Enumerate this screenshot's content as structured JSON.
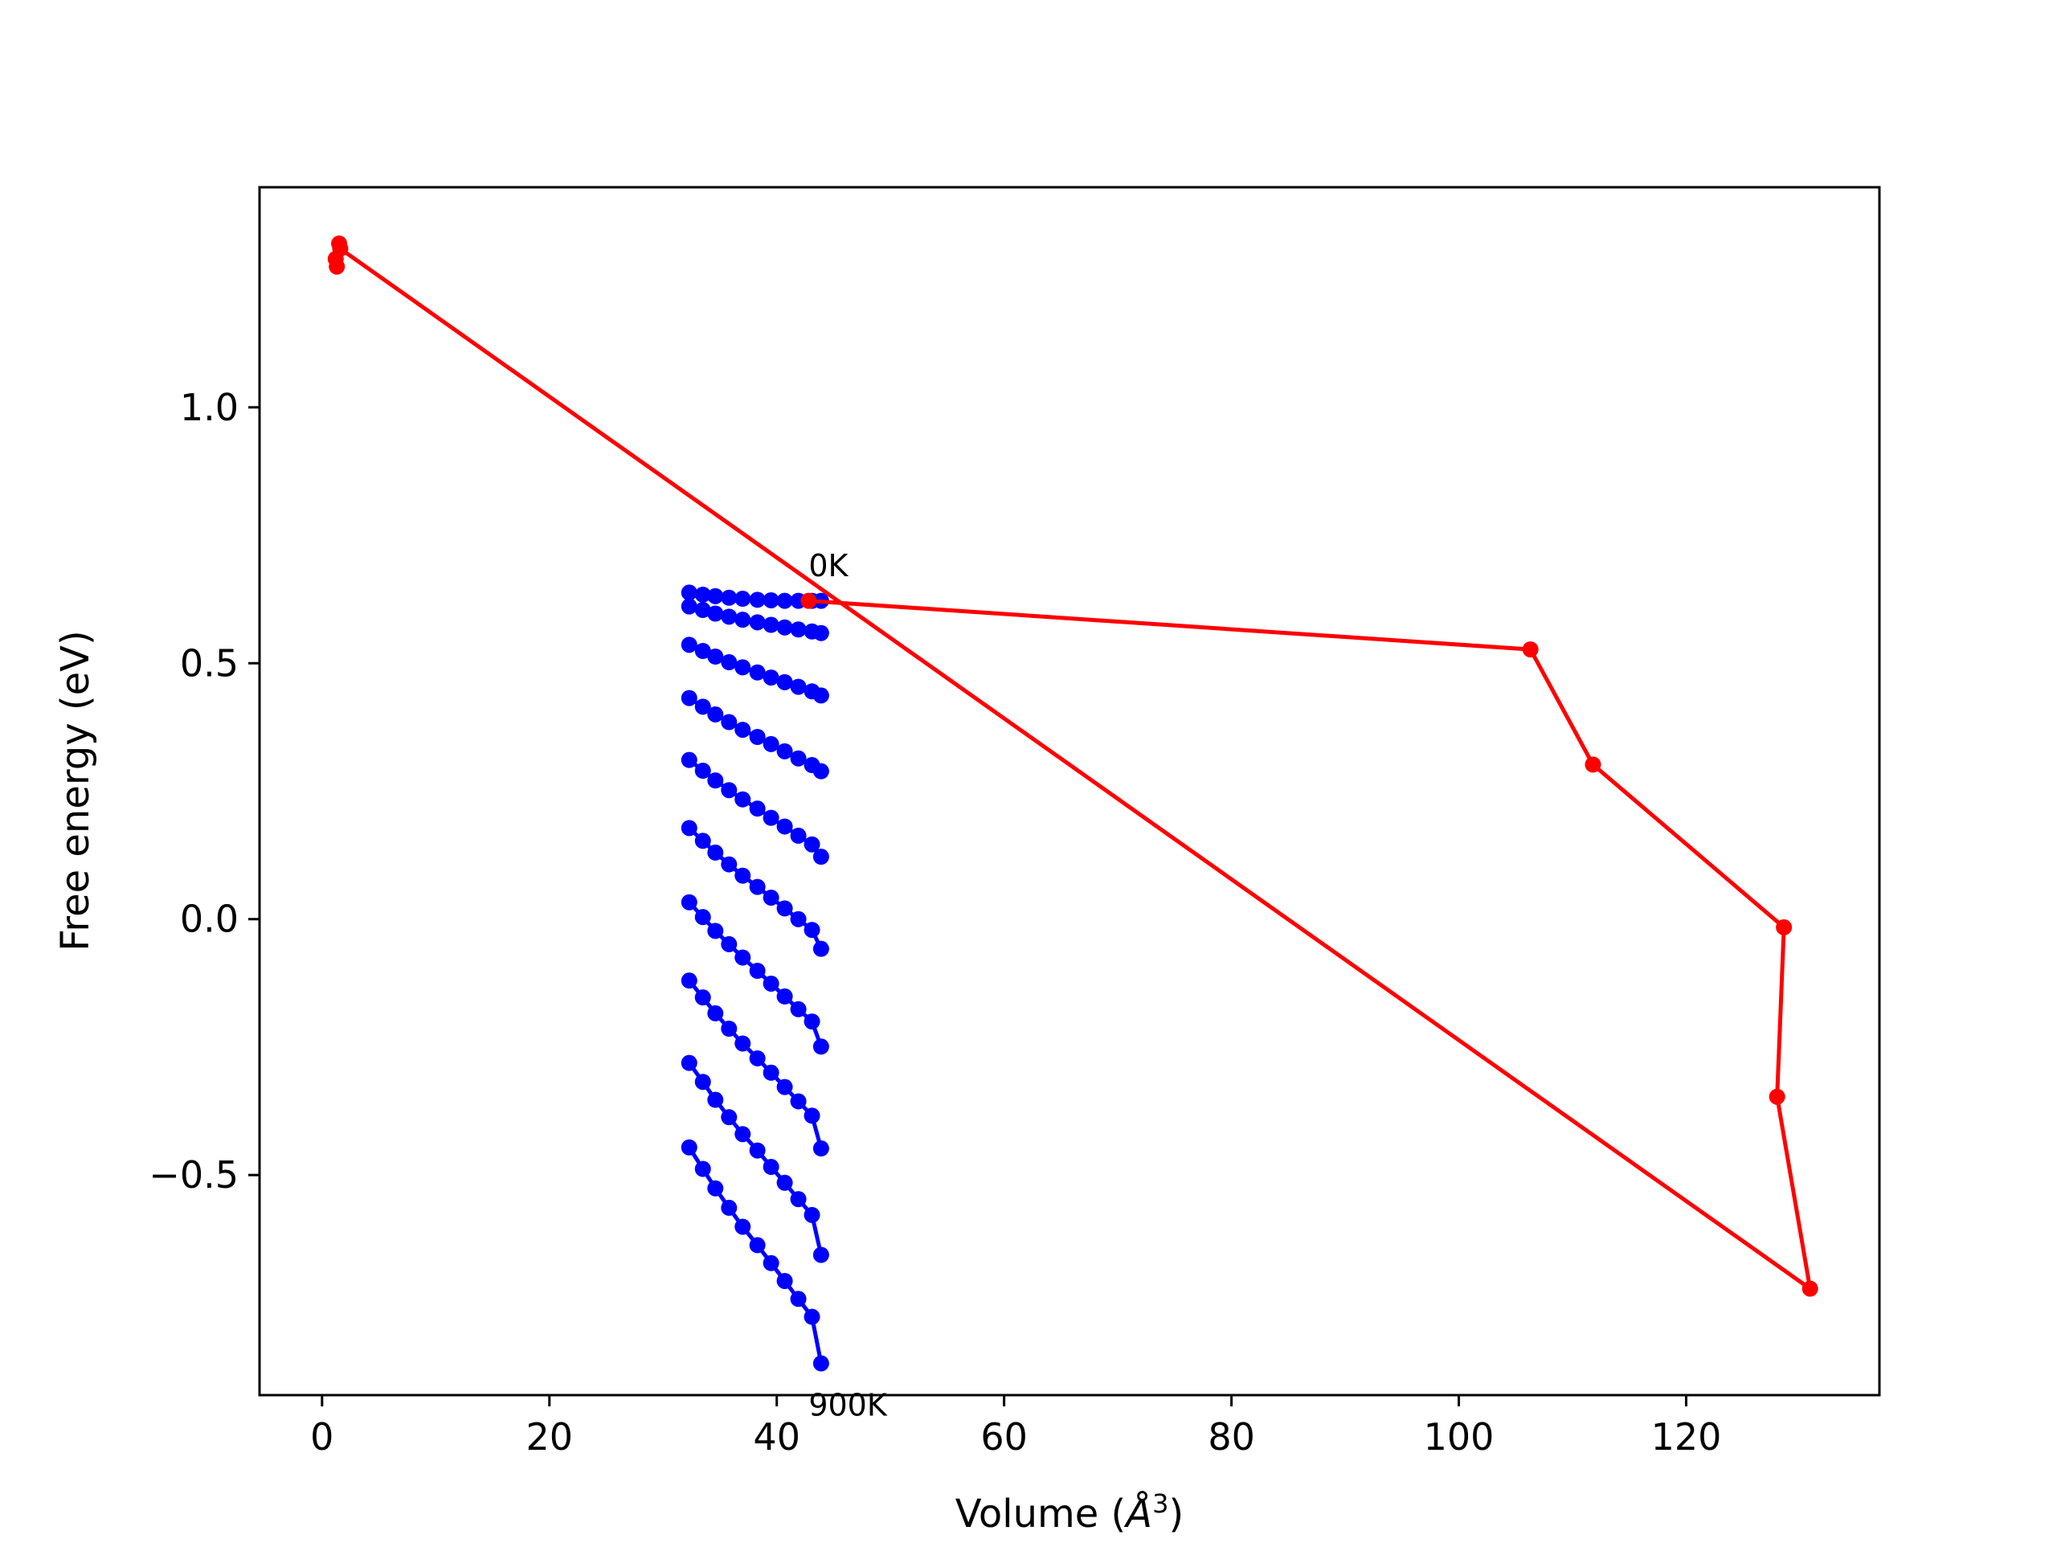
{
  "chart_data": {
    "type": "line",
    "title": "",
    "xlabel": "Volume",
    "xlabel_unit": "Å",
    "xlabel_unit_power": "3",
    "ylabel": "Free energy (eV)",
    "xlim": [
      -5.5,
      137
    ],
    "ylim": [
      -0.93,
      1.43
    ],
    "xticks": [
      0,
      20,
      40,
      60,
      80,
      100,
      120
    ],
    "xtick_labels": [
      "0",
      "20",
      "40",
      "60",
      "80",
      "100",
      "120"
    ],
    "yticks": [
      -0.5,
      0.0,
      0.5,
      1.0
    ],
    "ytick_labels": [
      "−0.5",
      "0.0",
      "0.5",
      "1.0"
    ],
    "grid": false,
    "legend": false,
    "annotations": [
      {
        "text": "0K",
        "x": 42.8,
        "y": 0.67
      },
      {
        "text": "900K",
        "x": 42.8,
        "y": -0.97
      }
    ],
    "series": [
      {
        "color": "#0000ff",
        "marker": "circle",
        "kind": "isotherms",
        "x": [
          32.3,
          33.5,
          34.6,
          35.8,
          37.0,
          38.3,
          39.5,
          40.7,
          41.9,
          43.1,
          43.9
        ],
        "curves": [
          [
            0.638,
            0.634,
            0.631,
            0.628,
            0.626,
            0.624,
            0.623,
            0.622,
            0.622,
            0.622,
            0.622
          ],
          [
            0.611,
            0.604,
            0.597,
            0.591,
            0.585,
            0.58,
            0.575,
            0.57,
            0.566,
            0.562,
            0.559
          ],
          [
            0.536,
            0.524,
            0.513,
            0.502,
            0.492,
            0.482,
            0.472,
            0.463,
            0.454,
            0.445,
            0.437
          ],
          [
            0.432,
            0.415,
            0.4,
            0.385,
            0.37,
            0.356,
            0.342,
            0.328,
            0.314,
            0.301,
            0.289
          ],
          [
            0.311,
            0.29,
            0.271,
            0.252,
            0.234,
            0.216,
            0.198,
            0.181,
            0.163,
            0.146,
            0.122
          ],
          [
            0.178,
            0.153,
            0.13,
            0.107,
            0.085,
            0.063,
            0.042,
            0.021,
            0.0,
            -0.021,
            -0.058
          ],
          [
            0.033,
            0.004,
            -0.023,
            -0.049,
            -0.075,
            -0.101,
            -0.126,
            -0.151,
            -0.176,
            -0.2,
            -0.249
          ],
          [
            -0.12,
            -0.153,
            -0.184,
            -0.214,
            -0.243,
            -0.272,
            -0.3,
            -0.328,
            -0.356,
            -0.384,
            -0.448
          ],
          [
            -0.281,
            -0.318,
            -0.353,
            -0.387,
            -0.42,
            -0.452,
            -0.484,
            -0.515,
            -0.547,
            -0.578,
            -0.656
          ],
          [
            -0.446,
            -0.488,
            -0.526,
            -0.564,
            -0.601,
            -0.637,
            -0.672,
            -0.707,
            -0.742,
            -0.777,
            -0.868
          ]
        ]
      },
      {
        "color": "#ff0000",
        "marker": "circle",
        "kind": "path",
        "points": [
          [
            42.8,
            0.622
          ],
          [
            106.3,
            0.527
          ],
          [
            111.8,
            0.302
          ],
          [
            128.6,
            -0.016
          ],
          [
            128.0,
            -0.347
          ],
          [
            130.9,
            -0.722
          ],
          [
            1.6,
            1.31
          ],
          [
            1.3,
            1.275
          ],
          [
            1.2,
            1.29
          ],
          [
            1.5,
            1.32
          ]
        ]
      }
    ]
  }
}
